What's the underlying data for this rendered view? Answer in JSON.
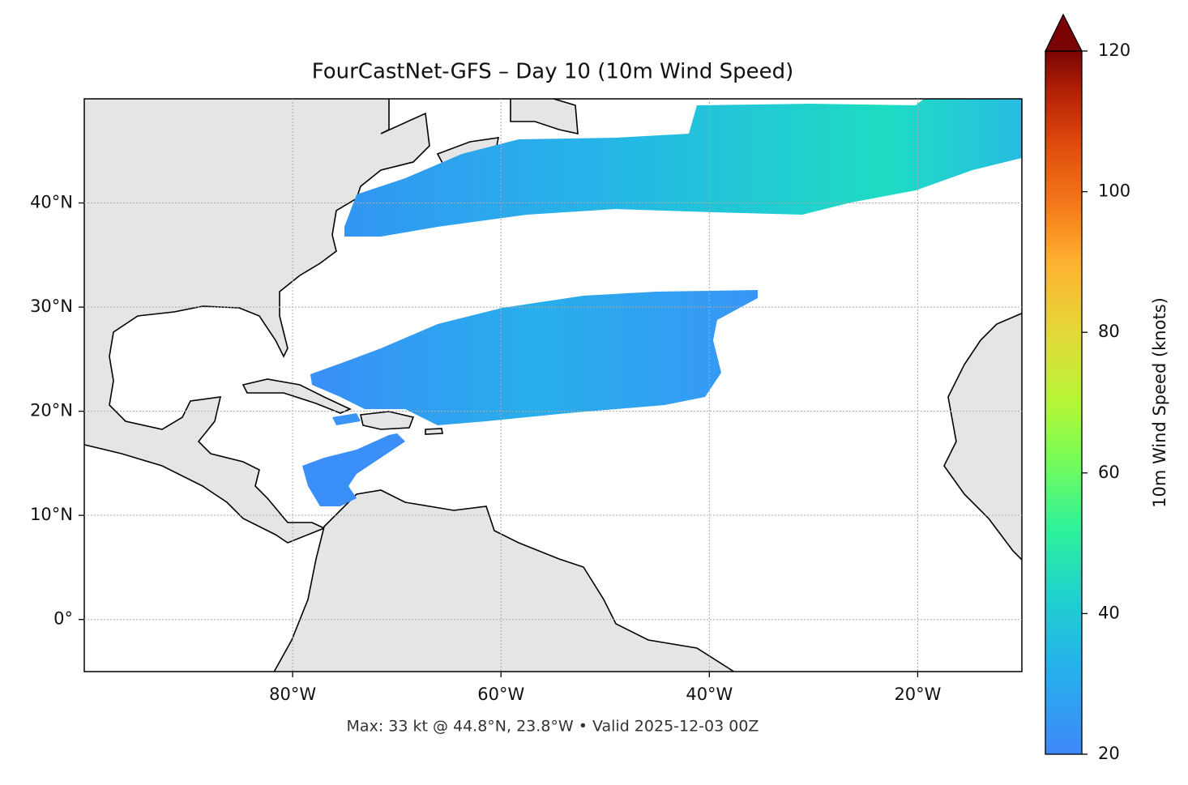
{
  "chart_data": {
    "type": "map",
    "title": "FourCastNet-GFS – Day 10 (10m Wind Speed)",
    "footnote": "Max: 33 kt @ 44.8°N, 23.8°W • Valid 2025-12-03 00Z",
    "xlim": [
      -100,
      -10
    ],
    "ylim": [
      -5,
      50
    ],
    "xticks": [
      {
        "value": -80,
        "label": "80°W"
      },
      {
        "value": -60,
        "label": "60°W"
      },
      {
        "value": -40,
        "label": "40°W"
      },
      {
        "value": -20,
        "label": "20°W"
      }
    ],
    "yticks": [
      {
        "value": 0,
        "label": "0°"
      },
      {
        "value": 10,
        "label": "10°N"
      },
      {
        "value": 20,
        "label": "20°N"
      },
      {
        "value": 30,
        "label": "30°N"
      },
      {
        "value": 40,
        "label": "40°N"
      }
    ],
    "grid": true,
    "colorbar": {
      "label": "10m Wind Speed (knots)",
      "lim": [
        20,
        120
      ],
      "ticks": [
        20,
        40,
        60,
        80,
        100,
        120
      ]
    }
  }
}
